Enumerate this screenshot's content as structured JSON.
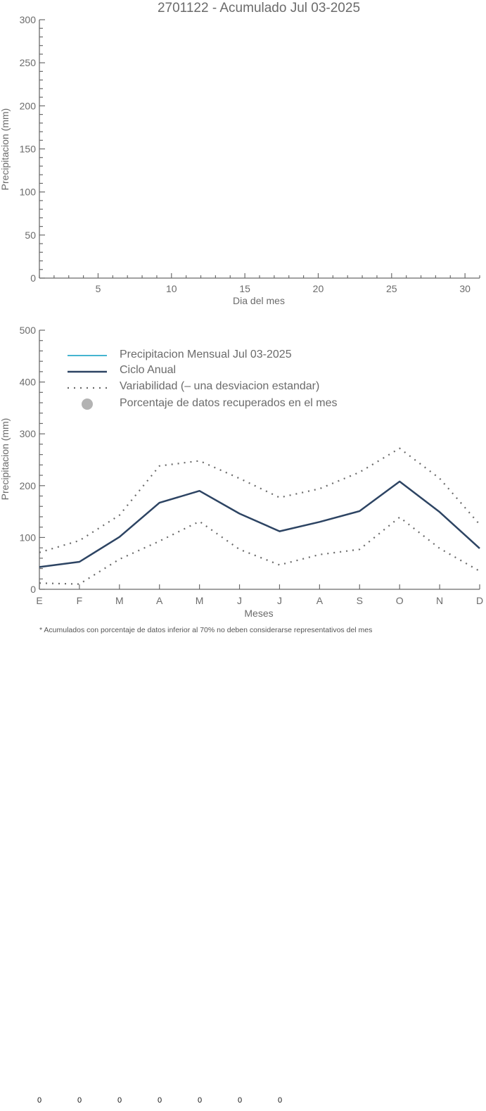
{
  "chart_data": [
    {
      "type": "bar",
      "title": "2701122 - Acumulado Jul 03-2025",
      "xlabel": "Dia del mes",
      "ylabel": "Precipitacion (mm)",
      "xlim": [
        1,
        31
      ],
      "ylim": [
        0,
        300
      ],
      "x_ticks": [
        5,
        10,
        15,
        20,
        25,
        30
      ],
      "y_ticks": [
        0,
        50,
        100,
        150,
        200,
        250,
        300
      ],
      "values": []
    },
    {
      "type": "line",
      "xlabel": "Meses",
      "ylabel": "Precipitacion (mm)",
      "ylim": [
        0,
        500
      ],
      "y_ticks": [
        0,
        100,
        200,
        300,
        400,
        500
      ],
      "categories": [
        "E",
        "F",
        "M",
        "A",
        "M",
        "J",
        "J",
        "A",
        "S",
        "O",
        "N",
        "D"
      ],
      "legend_position": "top-left",
      "legend": {
        "monthly": "Precipitacion Mensual Jul 03-2025",
        "annual": "Ciclo Anual",
        "variability": "Variabilidad (– una desviacion estandar)",
        "percentage": "Porcentaje de datos recuperados en el mes"
      },
      "series": [
        {
          "key": "annual",
          "style": "solid",
          "color": "#2d4463",
          "values": [
            43,
            53,
            101,
            167,
            190,
            146,
            112,
            130,
            151,
            208,
            149,
            79
          ]
        },
        {
          "key": "upper",
          "style": "dotted",
          "color": "#6b6b6b",
          "values": [
            71,
            94,
            143,
            238,
            248,
            214,
            177,
            194,
            226,
            272,
            214,
            125
          ]
        },
        {
          "key": "lower",
          "style": "dotted",
          "color": "#6b6b6b",
          "values": [
            12,
            10,
            58,
            93,
            131,
            77,
            47,
            67,
            77,
            139,
            79,
            35
          ]
        }
      ],
      "footnote": "* Acumulados con porcentaje de datos inferior al 70% no deben considerarse representativos del mes"
    }
  ],
  "colors": {
    "axis": "#6b6b6b",
    "monthly_line": "#45b5d0",
    "annual_line": "#2d4463",
    "variability": "#6b6b6b",
    "percentage_marker": "#b3b3b3"
  },
  "bottom_values": [
    "0",
    "0",
    "0",
    "0",
    "0",
    "0",
    "0"
  ]
}
